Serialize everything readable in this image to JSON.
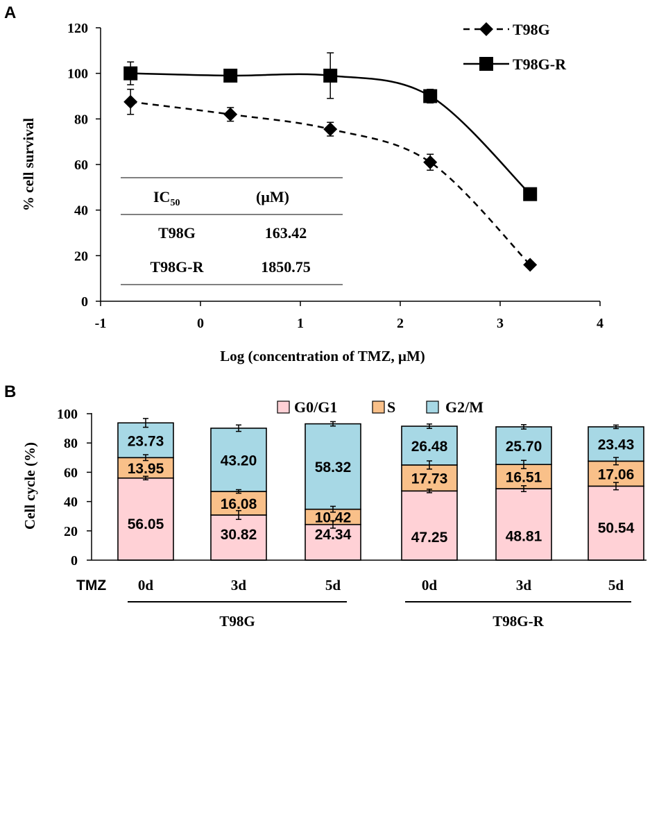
{
  "panel_a": {
    "label": "A",
    "chart_data": {
      "type": "line",
      "xlabel": "Log (concentration of TMZ, μM)",
      "ylabel": "% cell survival",
      "xlim": [
        -1,
        4
      ],
      "ylim": [
        0,
        120
      ],
      "xticks": [
        -1,
        0,
        1,
        2,
        3,
        4
      ],
      "yticks": [
        0,
        20,
        40,
        60,
        80,
        100,
        120
      ],
      "grid": false,
      "legend_position": "top-right",
      "series": [
        {
          "name": "T98G",
          "marker": "diamond",
          "line": "dashed",
          "x": [
            -0.7,
            0.3,
            1.3,
            2.3,
            3.3
          ],
          "y": [
            87.5,
            82,
            75.5,
            61,
            16
          ],
          "err": [
            5.5,
            3,
            3,
            3.5,
            1
          ]
        },
        {
          "name": "T98G-R",
          "marker": "square",
          "line": "solid",
          "x": [
            -0.7,
            0.3,
            1.3,
            2.3,
            3.3
          ],
          "y": [
            100,
            99,
            99,
            90,
            47
          ],
          "err": [
            5,
            1.5,
            10,
            3,
            1
          ]
        }
      ]
    },
    "ic50_table": {
      "header": [
        "IC50",
        "(μM)"
      ],
      "header_base": "IC",
      "header_sub": "50",
      "rows": [
        {
          "name": "T98G",
          "value": "163.42"
        },
        {
          "name": "T98G-R",
          "value": "1850.75"
        }
      ]
    }
  },
  "panel_b": {
    "label": "B",
    "chart_data": {
      "type": "bar",
      "stacked": true,
      "ylabel": "Cell cycle (%)",
      "ylim": [
        0,
        100
      ],
      "yticks": [
        0,
        20,
        40,
        60,
        80,
        100
      ],
      "row_label": "TMZ",
      "categories": [
        "0d",
        "3d",
        "5d",
        "0d",
        "3d",
        "5d"
      ],
      "groups": [
        {
          "name": "T98G",
          "categories": [
            0,
            1,
            2
          ]
        },
        {
          "name": "T98G-R",
          "categories": [
            3,
            4,
            5
          ]
        }
      ],
      "legend_position": "top-right",
      "series": [
        {
          "name": "G0/G1",
          "color": "#FFD1D6",
          "values": [
            56.05,
            30.82,
            24.34,
            47.25,
            48.81,
            50.54
          ],
          "labels": [
            "56.05",
            "30.82",
            "24.34",
            "47.25",
            "48.81",
            "50.54"
          ],
          "err": [
            1.2,
            3.0,
            2.5,
            1.2,
            2.0,
            2.5
          ]
        },
        {
          "name": "S",
          "color": "#F9C089",
          "values": [
            13.95,
            16.08,
            10.42,
            17.73,
            16.51,
            17.06
          ],
          "labels": [
            "13.95",
            "16.08",
            "10.42",
            "17.73",
            "16.51",
            "17.06"
          ],
          "err": [
            2.0,
            1.2,
            2.0,
            2.8,
            2.8,
            2.5
          ]
        },
        {
          "name": "G2/M",
          "color": "#A7D8E5",
          "values": [
            23.73,
            43.2,
            58.32,
            26.48,
            25.7,
            23.43
          ],
          "labels": [
            "23.73",
            "43.20",
            "58.32",
            "26.48",
            "25.70",
            "23.43"
          ],
          "err": [
            3.0,
            2.2,
            1.5,
            1.5,
            1.5,
            1.2
          ]
        }
      ]
    }
  }
}
